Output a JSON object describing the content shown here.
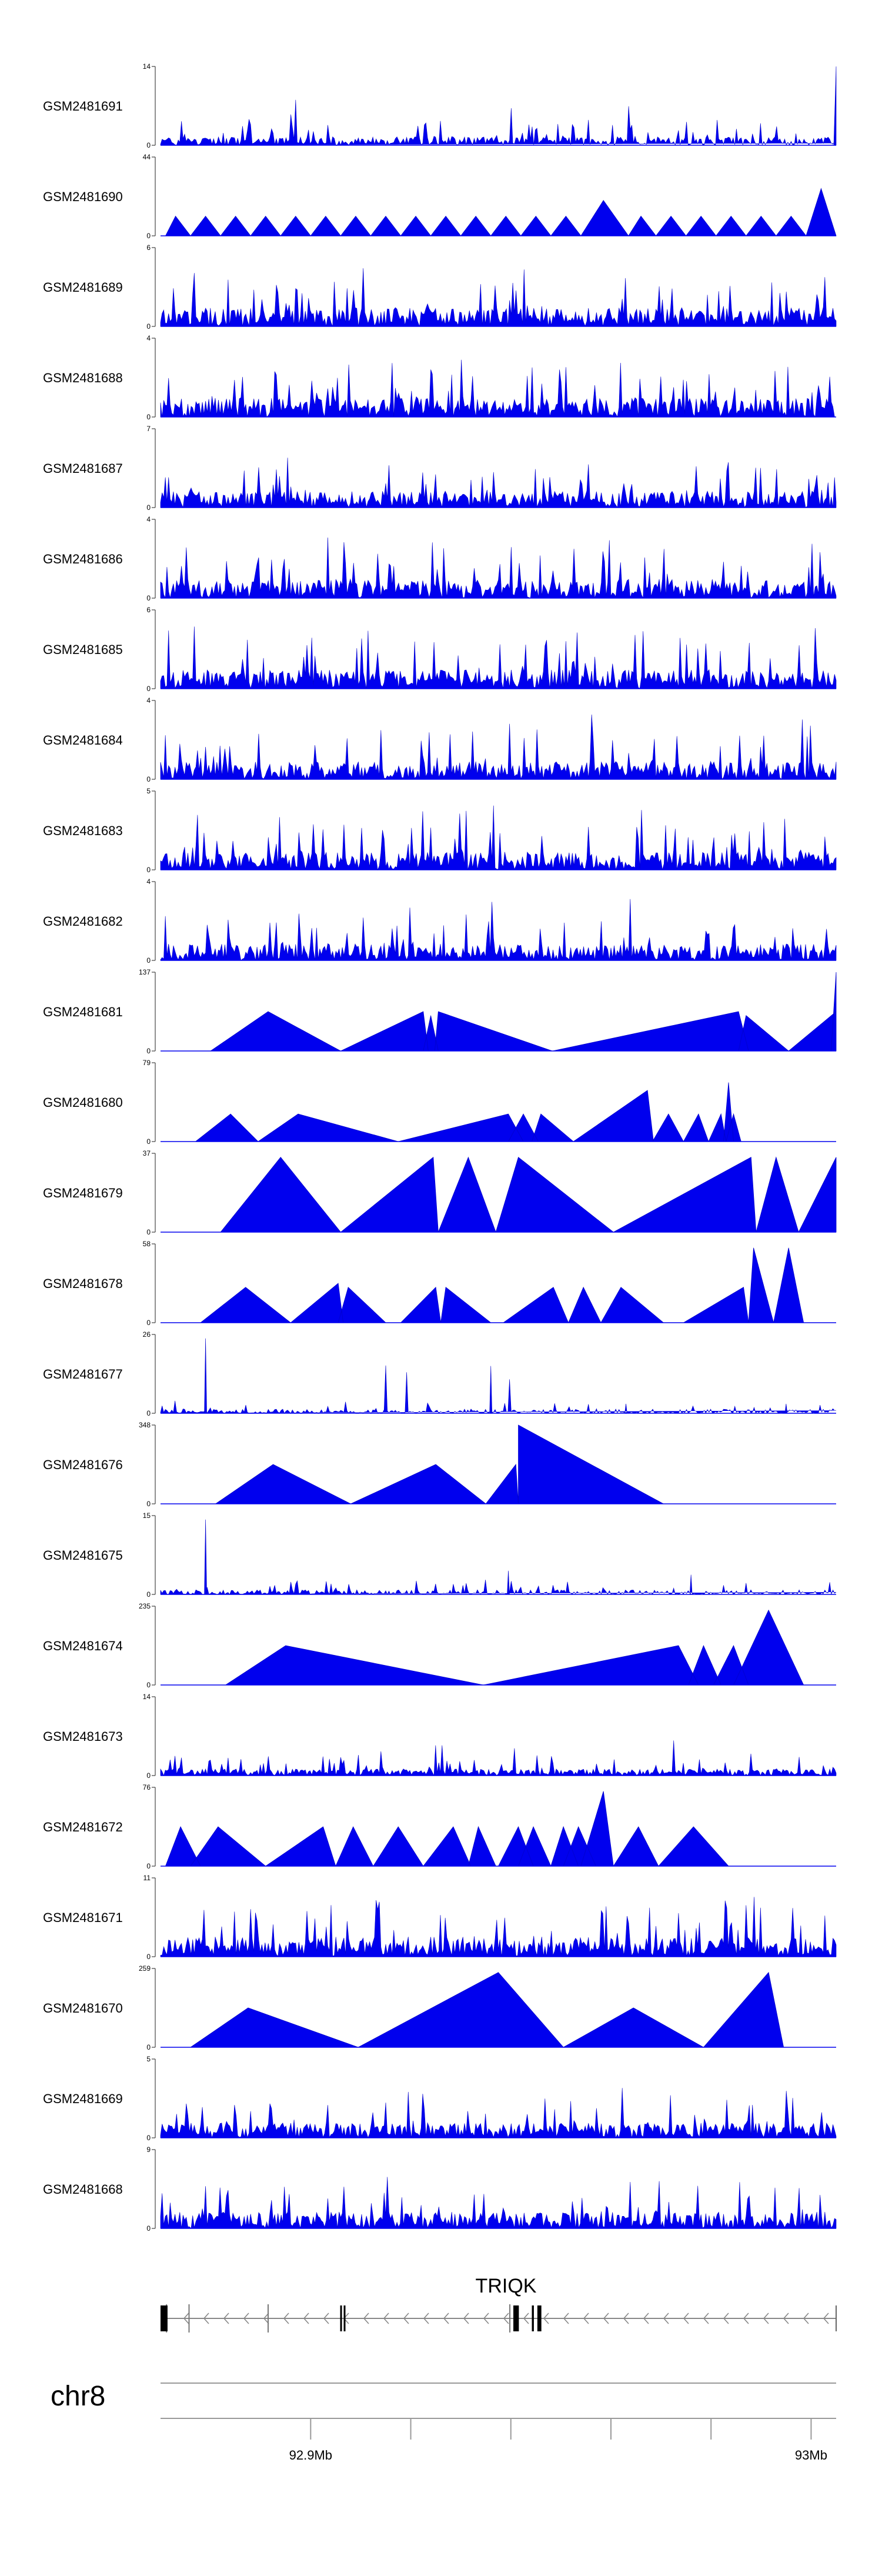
{
  "chart_data": {
    "type": "area",
    "chromosome": "chr8",
    "gene": "TRIQK",
    "x_range_mb": [
      92.87,
      93.005
    ],
    "axis_ticks": [
      {
        "pos_mb": 92.9,
        "label": "92.9Mb"
      },
      {
        "pos_mb": 92.92,
        "label": ""
      },
      {
        "pos_mb": 92.94,
        "label": ""
      },
      {
        "pos_mb": 92.96,
        "label": ""
      },
      {
        "pos_mb": 92.98,
        "label": ""
      },
      {
        "pos_mb": 93.0,
        "label": "93Mb"
      }
    ],
    "colors": {
      "fill": "#0000ee",
      "stroke": "#0000cc",
      "axis": "#444444",
      "gene": "#000000"
    },
    "tracks": [
      {
        "name": "GSM2481691",
        "ymax": 14,
        "ymin": 0,
        "style": "dense",
        "seed": 91,
        "level": 0.18
      },
      {
        "name": "GSM2481690",
        "ymax": 44,
        "ymin": 0,
        "style": "triangles",
        "seed": 90,
        "peaks": [
          [
            92.871,
            92.873,
            92.876,
            0.25
          ],
          [
            92.876,
            92.879,
            92.882,
            0.25
          ],
          [
            92.882,
            92.885,
            92.888,
            0.25
          ],
          [
            92.888,
            92.891,
            92.894,
            0.25
          ],
          [
            92.894,
            92.897,
            92.9,
            0.25
          ],
          [
            92.9,
            92.903,
            92.906,
            0.25
          ],
          [
            92.906,
            92.909,
            92.912,
            0.25
          ],
          [
            92.912,
            92.915,
            92.918,
            0.25
          ],
          [
            92.918,
            92.921,
            92.924,
            0.25
          ],
          [
            92.924,
            92.927,
            92.93,
            0.25
          ],
          [
            92.93,
            92.933,
            92.936,
            0.25
          ],
          [
            92.936,
            92.939,
            92.942,
            0.25
          ],
          [
            92.942,
            92.945,
            92.948,
            0.25
          ],
          [
            92.948,
            92.951,
            92.954,
            0.25
          ],
          [
            92.954,
            92.9585,
            92.9635,
            0.45
          ],
          [
            92.9635,
            92.966,
            92.969,
            0.25
          ],
          [
            92.969,
            92.972,
            92.975,
            0.25
          ],
          [
            92.975,
            92.978,
            92.981,
            0.25
          ],
          [
            92.981,
            92.984,
            92.987,
            0.25
          ],
          [
            92.987,
            92.99,
            92.993,
            0.25
          ],
          [
            92.993,
            92.996,
            92.999,
            0.25
          ],
          [
            92.999,
            93.002,
            93.005,
            0.6
          ]
        ]
      },
      {
        "name": "GSM2481689",
        "ymax": 6,
        "ymin": 0,
        "style": "dense",
        "seed": 89,
        "level": 0.4
      },
      {
        "name": "GSM2481688",
        "ymax": 4,
        "ymin": 0,
        "style": "dense",
        "seed": 88,
        "level": 0.4
      },
      {
        "name": "GSM2481687",
        "ymax": 7,
        "ymin": 0,
        "style": "dense",
        "seed": 87,
        "level": 0.35
      },
      {
        "name": "GSM2481686",
        "ymax": 4,
        "ymin": 0,
        "style": "dense",
        "seed": 86,
        "level": 0.4
      },
      {
        "name": "GSM2481685",
        "ymax": 6,
        "ymin": 0,
        "style": "dense",
        "seed": 85,
        "level": 0.4
      },
      {
        "name": "GSM2481684",
        "ymax": 4,
        "ymin": 0,
        "style": "dense",
        "seed": 84,
        "level": 0.38
      },
      {
        "name": "GSM2481683",
        "ymax": 5,
        "ymin": 0,
        "style": "dense",
        "seed": 83,
        "level": 0.38
      },
      {
        "name": "GSM2481682",
        "ymax": 4,
        "ymin": 0,
        "style": "dense",
        "seed": 82,
        "level": 0.35
      },
      {
        "name": "GSM2481681",
        "ymax": 137,
        "ymin": 0,
        "style": "triangles",
        "seed": 81,
        "peaks": [
          [
            92.88,
            92.8915,
            92.906,
            0.5
          ],
          [
            92.906,
            92.9225,
            92.9235,
            0.5
          ],
          [
            92.9225,
            92.924,
            92.9255,
            0.45
          ],
          [
            92.9248,
            92.9255,
            92.9483,
            0.5
          ],
          [
            92.9483,
            92.9855,
            92.9875,
            0.5
          ],
          [
            92.9855,
            92.987,
            92.9955,
            0.45
          ],
          [
            92.9955,
            93.005,
            93.005,
            0.5
          ],
          [
            93.004,
            93.005,
            93.005,
            1.0
          ]
        ]
      },
      {
        "name": "GSM2481680",
        "ymax": 79,
        "ymin": 0,
        "style": "triangles",
        "seed": 80,
        "peaks": [
          [
            92.877,
            92.884,
            92.8895,
            0.35
          ],
          [
            92.8895,
            92.8975,
            92.9175,
            0.35
          ],
          [
            92.9175,
            92.9395,
            92.9425,
            0.35
          ],
          [
            92.9395,
            92.9425,
            92.9455,
            0.35
          ],
          [
            92.9442,
            92.946,
            92.9525,
            0.35
          ],
          [
            92.9525,
            92.9673,
            92.9685,
            0.65
          ],
          [
            92.9683,
            92.9715,
            92.9745,
            0.35
          ],
          [
            92.9745,
            92.9775,
            92.9795,
            0.35
          ],
          [
            92.9795,
            92.982,
            92.983,
            0.35
          ],
          [
            92.9825,
            92.9835,
            92.9845,
            0.75
          ],
          [
            92.983,
            92.9845,
            92.986,
            0.35
          ]
        ]
      },
      {
        "name": "GSM2481679",
        "ymax": 37,
        "ymin": 0,
        "style": "triangles",
        "seed": 79,
        "peaks": [
          [
            92.882,
            92.894,
            92.906,
            0.95
          ],
          [
            92.906,
            92.9245,
            92.9255,
            0.95
          ],
          [
            92.9255,
            92.9315,
            92.937,
            0.95
          ],
          [
            92.937,
            92.9415,
            92.9605,
            0.95
          ],
          [
            92.9605,
            92.988,
            92.989,
            0.95
          ],
          [
            92.989,
            92.993,
            92.9975,
            0.95
          ],
          [
            92.9975,
            93.005,
            93.005,
            0.95
          ]
        ]
      },
      {
        "name": "GSM2481678",
        "ymax": 58,
        "ymin": 0,
        "style": "triangles",
        "seed": 78,
        "peaks": [
          [
            92.878,
            92.887,
            92.896,
            0.45
          ],
          [
            92.896,
            92.9055,
            92.9065,
            0.5
          ],
          [
            92.9055,
            92.9075,
            92.915,
            0.45
          ],
          [
            92.918,
            92.925,
            92.926,
            0.45
          ],
          [
            92.926,
            92.927,
            92.936,
            0.45
          ],
          [
            92.9385,
            92.9485,
            92.9515,
            0.45
          ],
          [
            92.9515,
            92.9545,
            92.958,
            0.45
          ],
          [
            92.958,
            92.962,
            92.9705,
            0.45
          ],
          [
            92.9745,
            92.9865,
            92.9875,
            0.45
          ],
          [
            92.9875,
            92.9885,
            92.9925,
            0.95
          ],
          [
            92.9925,
            92.9955,
            92.9985,
            0.95
          ]
        ]
      },
      {
        "name": "GSM2481677",
        "ymax": 26,
        "ymin": 0,
        "style": "sparse",
        "seed": 77,
        "level": 0.09,
        "spikes": [
          [
            92.879,
            0.95
          ],
          [
            92.936,
            0.6
          ],
          [
            92.963,
            0.12
          ],
          [
            92.995,
            0.12
          ]
        ]
      },
      {
        "name": "GSM2481676",
        "ymax": 348,
        "ymin": 0,
        "style": "triangles",
        "seed": 76,
        "peaks": [
          [
            92.881,
            92.8925,
            92.908,
            0.5
          ],
          [
            92.908,
            92.925,
            92.935,
            0.5
          ],
          [
            92.935,
            92.941,
            92.9415,
            0.5
          ],
          [
            92.9415,
            92.9415,
            92.9705,
            1.0
          ]
        ]
      },
      {
        "name": "GSM2481675",
        "ymax": 15,
        "ymin": 0,
        "style": "sparse",
        "seed": 75,
        "level": 0.1,
        "spikes": [
          [
            92.879,
            0.95
          ],
          [
            92.9395,
            0.3
          ],
          [
            92.976,
            0.25
          ]
        ]
      },
      {
        "name": "GSM2481674",
        "ymax": 235,
        "ymin": 0,
        "style": "triangles",
        "seed": 74,
        "peaks": [
          [
            92.883,
            92.895,
            92.9345,
            0.5
          ],
          [
            92.9345,
            92.9735,
            92.9775,
            0.5
          ],
          [
            92.9755,
            92.9785,
            92.982,
            0.5
          ],
          [
            92.9805,
            92.9845,
            92.9875,
            0.5
          ],
          [
            92.9845,
            92.9915,
            92.9985,
            0.95
          ]
        ]
      },
      {
        "name": "GSM2481673",
        "ymax": 14,
        "ymin": 0,
        "style": "dense",
        "seed": 73,
        "level": 0.14
      },
      {
        "name": "GSM2481672",
        "ymax": 76,
        "ymin": 0,
        "style": "triangles",
        "seed": 72,
        "peaks": [
          [
            92.871,
            92.874,
            92.878,
            0.5
          ],
          [
            92.876,
            92.8815,
            92.891,
            0.5
          ],
          [
            92.891,
            92.9025,
            92.905,
            0.5
          ],
          [
            92.905,
            92.9085,
            92.9125,
            0.5
          ],
          [
            92.9125,
            92.9175,
            92.9225,
            0.5
          ],
          [
            92.9225,
            92.9285,
            92.932,
            0.5
          ],
          [
            92.9315,
            92.9335,
            92.937,
            0.5
          ],
          [
            92.9375,
            92.9415,
            92.9445,
            0.5
          ],
          [
            92.9415,
            92.9445,
            92.948,
            0.5
          ],
          [
            92.948,
            92.9505,
            92.9535,
            0.5
          ],
          [
            92.9505,
            92.9535,
            92.957,
            0.5
          ],
          [
            92.954,
            92.9585,
            92.9605,
            0.95
          ],
          [
            92.9605,
            92.9655,
            92.9695,
            0.5
          ],
          [
            92.9695,
            92.9765,
            92.9835,
            0.5
          ]
        ]
      },
      {
        "name": "GSM2481671",
        "ymax": 11,
        "ymin": 0,
        "style": "dense",
        "seed": 71,
        "level": 0.42
      },
      {
        "name": "GSM2481670",
        "ymax": 259,
        "ymin": 0,
        "style": "triangles",
        "seed": 70,
        "peaks": [
          [
            92.876,
            92.8875,
            92.9095,
            0.5
          ],
          [
            92.9095,
            92.9375,
            92.9505,
            0.95
          ],
          [
            92.9505,
            92.9645,
            92.9785,
            0.5
          ],
          [
            92.9785,
            92.9915,
            92.9945,
            0.95
          ]
        ]
      },
      {
        "name": "GSM2481669",
        "ymax": 5,
        "ymin": 0,
        "style": "dense",
        "seed": 69,
        "level": 0.32
      },
      {
        "name": "GSM2481668",
        "ymax": 9,
        "ymin": 0,
        "style": "dense",
        "seed": 68,
        "level": 0.35
      }
    ],
    "gene_model": {
      "strand": "-",
      "exons_mb": [
        [
          92.87,
          92.8714
        ],
        [
          92.9059,
          92.9062
        ],
        [
          92.9066,
          92.9069
        ],
        [
          92.9405,
          92.9416
        ],
        [
          92.9442,
          92.9446
        ],
        [
          92.9453,
          92.9461
        ]
      ],
      "ticks_mb": [
        92.8712,
        92.8757,
        92.8915,
        92.9398
      ]
    }
  }
}
